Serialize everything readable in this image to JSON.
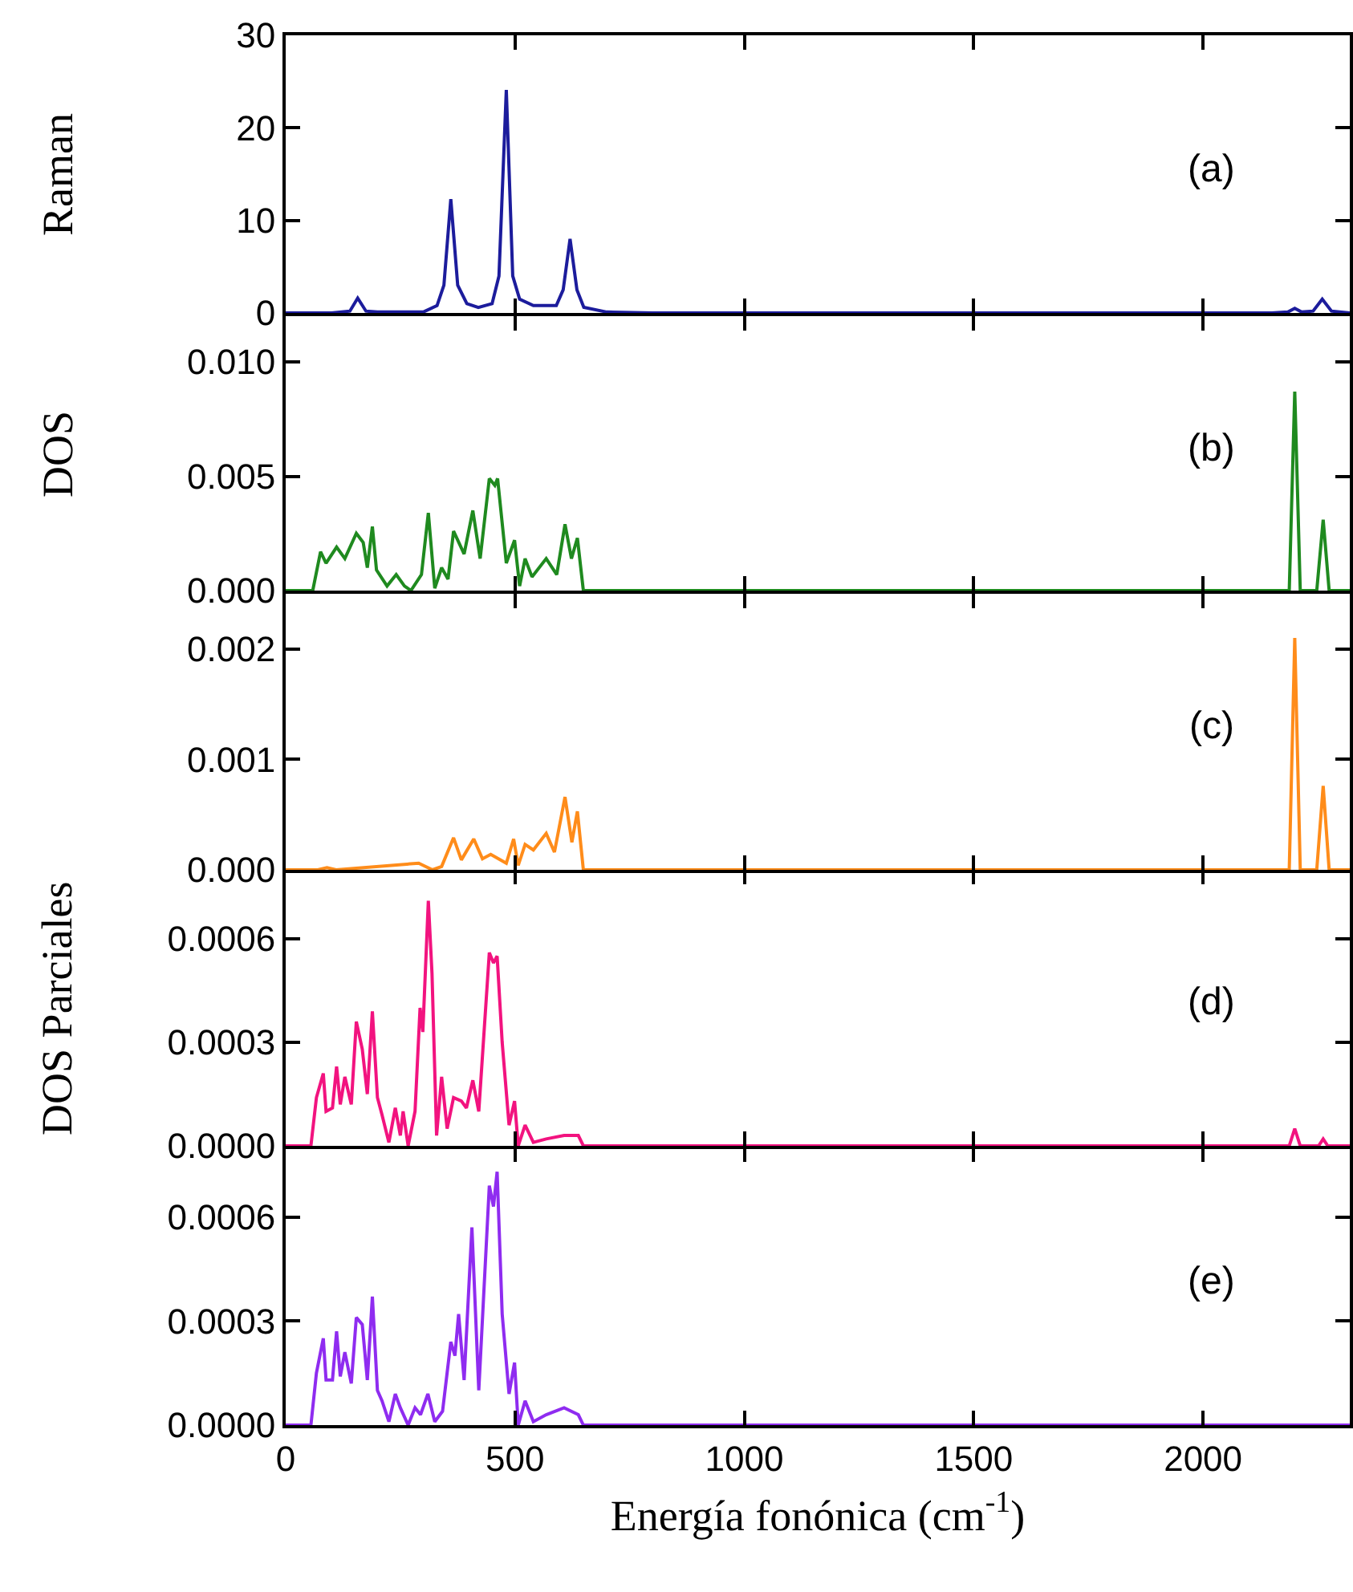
{
  "chart_data": [
    {
      "type": "line",
      "ylabel": "Raman",
      "annotations": [
        "(a)"
      ],
      "tick_labels": "y",
      "x": [
        0,
        100,
        140,
        157,
        175,
        200,
        300,
        330,
        345,
        360,
        375,
        395,
        420,
        450,
        465,
        481,
        495,
        510,
        540,
        590,
        605,
        620,
        635,
        650,
        700,
        800,
        2150,
        2185,
        2200,
        2215,
        2240,
        2260,
        2280,
        2320
      ],
      "series": [
        {
          "color": "#1c1c9c",
          "values": [
            0,
            0,
            0.2,
            1.6,
            0.2,
            0.1,
            0.1,
            0.8,
            3,
            12.3,
            3,
            1,
            0.6,
            1,
            4,
            24.1,
            4,
            1.5,
            0.8,
            0.8,
            2.5,
            8.0,
            2.5,
            0.6,
            0.1,
            0,
            0,
            0.1,
            0.5,
            0.1,
            0.2,
            1.5,
            0.2,
            0
          ]
        }
      ],
      "xlim": [
        0,
        2320
      ],
      "xticks": [
        0,
        500,
        1000,
        1500,
        2000
      ],
      "ylim": [
        0,
        30
      ],
      "yticks": [
        0,
        10,
        20,
        30
      ]
    },
    {
      "type": "line",
      "ylabel": "DOS",
      "annotations": [
        "(b)"
      ],
      "tick_labels": "y",
      "x": [
        0,
        59,
        76,
        88,
        111,
        129,
        154,
        169,
        178,
        189,
        198,
        221,
        241,
        259,
        273,
        296,
        311,
        325,
        340,
        354,
        366,
        389,
        408,
        424,
        444,
        456,
        462,
        481,
        499,
        510,
        522,
        537,
        568,
        591,
        609,
        623,
        636,
        649,
        2180,
        2188,
        2200,
        2212,
        2248,
        2262,
        2275,
        2320
      ],
      "series": [
        {
          "color": "#1f8a1f",
          "values": [
            0,
            0,
            0.0017,
            0.0012,
            0.0019,
            0.0014,
            0.0025,
            0.0021,
            0.001,
            0.0028,
            0.0009,
            0.0002,
            0.0007,
            0.0002,
            0,
            0.0007,
            0.0034,
            0.0001,
            0.001,
            0.0005,
            0.0026,
            0.0016,
            0.0035,
            0.0014,
            0.0049,
            0.0046,
            0.0049,
            0.0012,
            0.0022,
            0.0002,
            0.0014,
            0.0006,
            0.0014,
            0.0007,
            0.0029,
            0.0014,
            0.0023,
            0,
            0,
            0,
            0.0087,
            0,
            0,
            0.0031,
            0,
            0
          ]
        }
      ],
      "xlim": [
        0,
        2320
      ],
      "xticks": [
        0,
        500,
        1000,
        1500,
        2000
      ],
      "ylim": [
        0,
        0.012
      ],
      "yticks": [
        {
          "value": 0,
          "label": "0.000"
        },
        {
          "value": 0.005,
          "label": "0.005"
        },
        {
          "value": 0.01,
          "label": "0.010"
        }
      ]
    },
    {
      "type": "line",
      "annotations": [
        "(c)"
      ],
      "tick_labels": "y",
      "x": [
        0,
        70,
        90,
        110,
        290,
        320,
        340,
        366,
        383,
        410,
        429,
        447,
        481,
        497,
        507,
        522,
        540,
        568,
        586,
        609,
        624,
        636,
        649,
        2180,
        2188,
        2200,
        2212,
        2248,
        2262,
        2275,
        2320
      ],
      "series": [
        {
          "color": "#ff8c1a",
          "values": [
            0,
            0,
            2e-05,
            0,
            6e-05,
            0,
            3e-05,
            0.00029,
            9e-05,
            0.00028,
            0.0001,
            0.00014,
            6e-05,
            0.00028,
            4e-05,
            0.00023,
            0.00018,
            0.00033,
            0.00016,
            0.00066,
            0.00025,
            0.00053,
            0,
            0,
            0,
            0.0021,
            0,
            0,
            0.00076,
            0,
            0
          ]
        }
      ],
      "xlim": [
        0,
        2320
      ],
      "xticks": [
        0,
        500,
        1000,
        1500,
        2000
      ],
      "ylim": [
        0,
        0.0025
      ],
      "yticks": [
        {
          "value": 0,
          "label": "0.000"
        },
        {
          "value": 0.001,
          "label": "0.001"
        },
        {
          "value": 0.002,
          "label": "0.002"
        }
      ]
    },
    {
      "type": "line",
      "ylabel": "DOS Parciales",
      "annotations": [
        "(d)"
      ],
      "tick_labels": "y",
      "x": [
        0,
        55,
        67,
        82,
        88,
        102,
        111,
        119,
        129,
        143,
        154,
        167,
        178,
        189,
        200,
        210,
        225,
        239,
        250,
        256,
        267,
        282,
        293,
        299,
        311,
        319,
        329,
        340,
        352,
        366,
        383,
        394,
        408,
        421,
        444,
        453,
        461,
        472,
        487,
        499,
        507,
        522,
        540,
        568,
        607,
        638,
        649,
        2188,
        2200,
        2212,
        2252,
        2262,
        2272,
        2320
      ],
      "series": [
        {
          "color": "#f2137f",
          "values": [
            0,
            0,
            0.00014,
            0.00021,
            0.0001,
            0.00011,
            0.00023,
            0.00012,
            0.0002,
            0.00012,
            0.00036,
            0.00028,
            0.00015,
            0.00039,
            0.00014,
            9e-05,
            1e-05,
            0.00011,
            3e-05,
            0.0001,
            0,
            0.0001,
            0.0004,
            0.00033,
            0.00071,
            0.0005,
            3e-05,
            0.0002,
            5e-05,
            0.00014,
            0.00013,
            0.00011,
            0.00019,
            0.0001,
            0.00056,
            0.00053,
            0.00055,
            0.0003,
            6e-05,
            0.00013,
            0,
            6e-05,
            1e-05,
            2e-05,
            3e-05,
            3e-05,
            0,
            0,
            5e-05,
            0,
            0,
            2e-05,
            0,
            0
          ]
        }
      ],
      "xlim": [
        0,
        2320
      ],
      "xticks": [
        0,
        500,
        1000,
        1500,
        2000
      ],
      "ylim": [
        0,
        0.0008
      ],
      "yticks": [
        {
          "value": 0,
          "label": "0.0000"
        },
        {
          "value": 0.0003,
          "label": "0.0003"
        },
        {
          "value": 0.0006,
          "label": "0.0006"
        }
      ]
    },
    {
      "type": "line",
      "xlabel": "Energía fonónica (cm$^{-1}$)",
      "annotations": [
        "(e)"
      ],
      "x": [
        0,
        55,
        67,
        82,
        88,
        102,
        111,
        119,
        129,
        143,
        154,
        167,
        178,
        189,
        200,
        210,
        225,
        239,
        250,
        267,
        282,
        294,
        310,
        325,
        342,
        360,
        369,
        377,
        389,
        406,
        421,
        444,
        453,
        461,
        472,
        487,
        499,
        507,
        522,
        540,
        568,
        607,
        638,
        649,
        2320
      ],
      "series": [
        {
          "color": "#8f2cf0",
          "values": [
            0,
            0,
            0.00015,
            0.00025,
            0.00013,
            0.00013,
            0.00027,
            0.00014,
            0.00021,
            0.00012,
            0.00031,
            0.00029,
            0.00013,
            0.00037,
            0.0001,
            7e-05,
            1e-05,
            9e-05,
            5e-05,
            0,
            5e-05,
            3e-05,
            9e-05,
            1e-05,
            4e-05,
            0.00024,
            0.0002,
            0.00032,
            0.00013,
            0.00057,
            0.0001,
            0.00069,
            0.00063,
            0.00073,
            0.00032,
            9e-05,
            0.00018,
            0,
            7e-05,
            1e-05,
            3e-05,
            5e-05,
            3e-05,
            0,
            0
          ]
        }
      ],
      "xlim": [
        0,
        2320
      ],
      "xticks": [
        0,
        500,
        1000,
        1500,
        2000
      ],
      "ylim": [
        0,
        0.0008
      ],
      "yticks": [
        {
          "value": 0,
          "label": "0.0000"
        },
        {
          "value": 0.0003,
          "label": "0.0003"
        },
        {
          "value": 0.0006,
          "label": "0.0006"
        }
      ]
    }
  ]
}
